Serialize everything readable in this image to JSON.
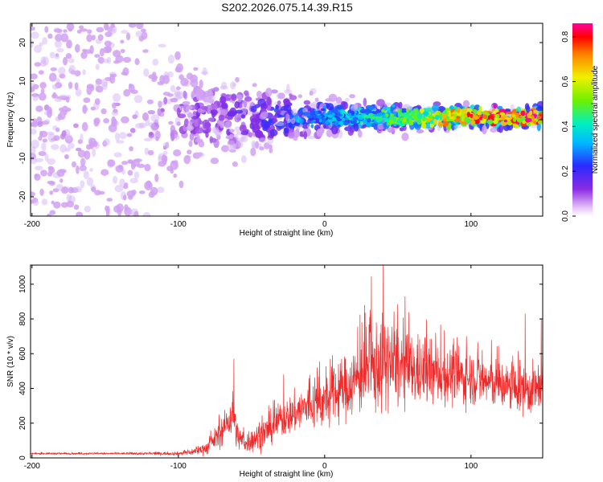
{
  "title": "S202.2026.075.14.39.R15",
  "colors": {
    "snr_line": "#ee2b2b",
    "blob_purple": "#7a22ee",
    "frame": "#000000"
  },
  "chart_data": [
    {
      "type": "heatmap",
      "name": "spectrogram",
      "xlabel": "Height of straight line (km)",
      "ylabel": "Frequency (Hz)",
      "xlim": [
        -201,
        149
      ],
      "ylim": [
        -25,
        25
      ],
      "xticks": [
        -200,
        -100,
        0,
        100
      ],
      "yticks": [
        -20,
        -10,
        0,
        10,
        20
      ],
      "colorbar": {
        "label": "Normalized spectral amplitude",
        "range": [
          0.0,
          0.86
        ],
        "ticks": [
          0.0,
          0.2,
          0.4,
          0.6,
          0.8
        ],
        "tick_labels": [
          "0.0",
          "0.2",
          "0.4",
          "0.6",
          "0.8"
        ]
      },
      "description_points": [
        {
          "x": -200,
          "spread_hz": 25,
          "amplitude": 0.05
        },
        {
          "x": -120,
          "spread_hz": 20,
          "amplitude": 0.06
        },
        {
          "x": -90,
          "spread_hz": 10,
          "amplitude": 0.1
        },
        {
          "x": -50,
          "spread_hz": 8,
          "amplitude": 0.15
        },
        {
          "x": 0,
          "spread_hz": 4,
          "amplitude": 0.3
        },
        {
          "x": 50,
          "spread_hz": 3,
          "amplitude": 0.45
        },
        {
          "x": 100,
          "spread_hz": 2.5,
          "amplitude": 0.7
        },
        {
          "x": 140,
          "spread_hz": 2.5,
          "amplitude": 0.8
        }
      ]
    },
    {
      "type": "line",
      "name": "snr",
      "xlabel": "Height of straight line (km)",
      "ylabel": "SNR (10 * v/v)",
      "xlim": [
        -201,
        149
      ],
      "ylim": [
        0,
        1110
      ],
      "xticks": [
        -200,
        -100,
        0,
        100
      ],
      "yticks": [
        0,
        200,
        400,
        600,
        800,
        1000
      ],
      "envelope": {
        "x": [
          -200,
          -150,
          -100,
          -90,
          -80,
          -75,
          -70,
          -65,
          -62,
          -60,
          -55,
          -50,
          -40,
          -30,
          -25,
          -20,
          -15,
          -10,
          0,
          10,
          20,
          25,
          30,
          35,
          40,
          45,
          50,
          60,
          70,
          80,
          90,
          100,
          110,
          120,
          130,
          140,
          149
        ],
        "mean": [
          25,
          25,
          25,
          35,
          60,
          110,
          150,
          230,
          250,
          130,
          90,
          100,
          150,
          220,
          240,
          260,
          280,
          300,
          320,
          380,
          440,
          480,
          500,
          520,
          540,
          540,
          520,
          500,
          490,
          480,
          470,
          460,
          440,
          420,
          400,
          390,
          400
        ],
        "spread": [
          5,
          5,
          10,
          20,
          40,
          60,
          80,
          100,
          150,
          80,
          60,
          70,
          90,
          100,
          110,
          120,
          130,
          140,
          150,
          170,
          200,
          220,
          250,
          260,
          260,
          250,
          230,
          200,
          180,
          170,
          160,
          150,
          150,
          140,
          140,
          140,
          160
        ]
      },
      "peaks": [
        {
          "x": -62,
          "y": 570
        },
        {
          "x": -28,
          "y": 480
        },
        {
          "x": 32,
          "y": 1045
        },
        {
          "x": 40,
          "y": 1110
        },
        {
          "x": 55,
          "y": 930
        },
        {
          "x": 137,
          "y": 830
        },
        {
          "x": 148,
          "y": 800
        }
      ]
    }
  ]
}
